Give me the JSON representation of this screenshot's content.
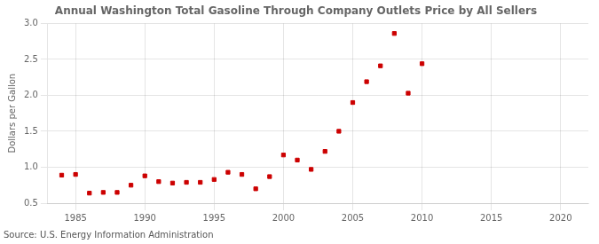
{
  "chart_data": {
    "type": "scatter",
    "title": "Annual Washington Total Gasoline Through Company Outlets Price by All Sellers",
    "ylabel": "Dollars per Gallon",
    "source": "Source: U.S. Energy Information Administration",
    "x": [
      1984,
      1985,
      1986,
      1987,
      1988,
      1989,
      1990,
      1991,
      1992,
      1993,
      1994,
      1995,
      1996,
      1997,
      1998,
      1999,
      2000,
      2001,
      2002,
      2003,
      2004,
      2005,
      2006,
      2007,
      2008,
      2009,
      2010
    ],
    "values": [
      0.89,
      0.9,
      0.64,
      0.65,
      0.65,
      0.75,
      0.88,
      0.8,
      0.78,
      0.79,
      0.79,
      0.83,
      0.93,
      0.9,
      0.7,
      0.87,
      1.17,
      1.1,
      0.97,
      1.22,
      1.5,
      1.9,
      2.19,
      2.41,
      2.86,
      2.03,
      2.44
    ],
    "color": "#cc0000",
    "marker": "square",
    "xlim": [
      1983,
      2022
    ],
    "xticks": [
      1985,
      1990,
      1995,
      2000,
      2005,
      2010,
      2015,
      2020
    ],
    "ylim": [
      0.5,
      3.0
    ],
    "yticks": [
      0.5,
      {
        "value": 1,
        "label": "1.0"
      },
      1.5,
      {
        "value": 2,
        "label": "2.0"
      },
      2.5,
      {
        "value": 3,
        "label": "3.0"
      }
    ],
    "grid": true
  }
}
